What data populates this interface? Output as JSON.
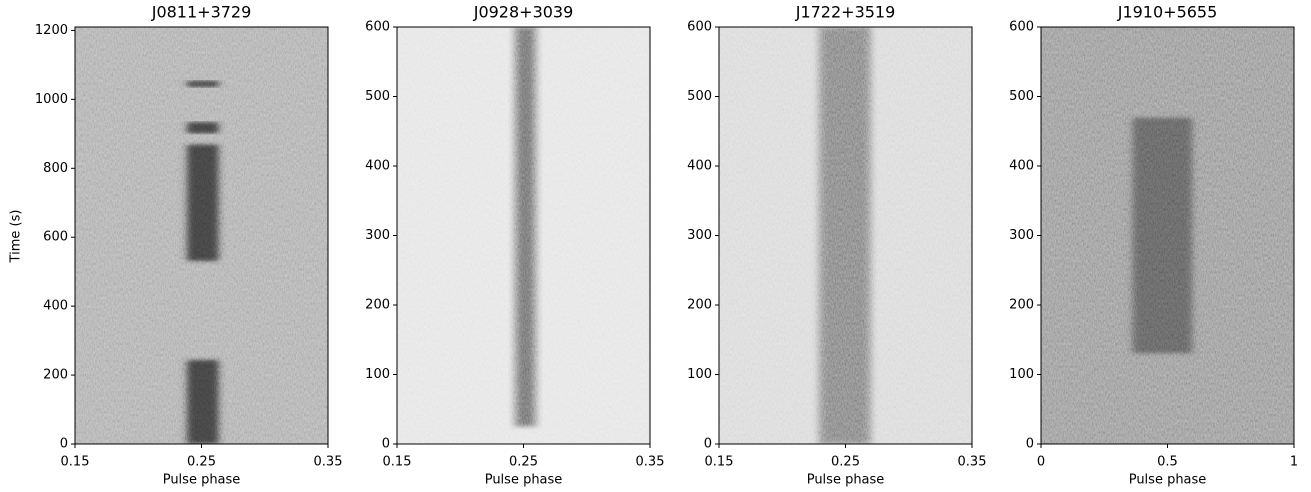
{
  "chart_data": [
    {
      "type": "waterfall",
      "title": "J0811+3729",
      "xlabel": "Pulse phase",
      "ylabel": "Time (s)",
      "xlim": [
        0.15,
        0.35
      ],
      "ylim": [
        0,
        1210
      ],
      "xticks": [
        0.15,
        0.25,
        0.35
      ],
      "yticks": [
        0,
        200,
        400,
        600,
        800,
        1000,
        1200
      ],
      "background": "#a6a6a6",
      "pulse_color": "#3a3a3a",
      "pulse_phase": [
        0.238,
        0.264
      ],
      "on_intervals": [
        [
          0,
          245
        ],
        [
          530,
          870
        ],
        [
          900,
          935
        ],
        [
          1035,
          1055
        ]
      ]
    },
    {
      "type": "waterfall",
      "title": "J0928+3039",
      "xlabel": "Pulse phase",
      "xlim": [
        0.15,
        0.35
      ],
      "ylim": [
        0,
        600
      ],
      "xticks": [
        0.15,
        0.25,
        0.35
      ],
      "yticks": [
        0,
        100,
        200,
        300,
        400,
        500,
        600
      ],
      "background": "#e2e2e2",
      "pulse_color": "#6a6a6a",
      "pulse_phase": [
        0.243,
        0.26
      ],
      "on_intervals": [
        [
          25,
          600
        ]
      ]
    },
    {
      "type": "waterfall",
      "title": "J1722+3519",
      "xlabel": "Pulse phase",
      "xlim": [
        0.15,
        0.35
      ],
      "ylim": [
        0,
        600
      ],
      "xticks": [
        0.15,
        0.25,
        0.35
      ],
      "yticks": [
        0,
        100,
        200,
        300,
        400,
        500,
        600
      ],
      "background": "#d6d6d6",
      "pulse_color": "#7a7a7a",
      "pulse_phase": [
        0.229,
        0.27
      ],
      "on_intervals": [
        [
          0,
          600
        ]
      ]
    },
    {
      "type": "waterfall",
      "title": "J1910+5655",
      "xlabel": "Pulse phase",
      "xlim": [
        0,
        1
      ],
      "ylim": [
        0,
        600
      ],
      "xticks": [
        0,
        0.5,
        1
      ],
      "yticks": [
        0,
        100,
        200,
        300,
        400,
        500,
        600
      ],
      "background": "#8e8e8e",
      "pulse_color": "#5a5a5a",
      "pulse_phase": [
        0.36,
        0.6
      ],
      "on_intervals": [
        [
          130,
          470
        ]
      ]
    }
  ]
}
